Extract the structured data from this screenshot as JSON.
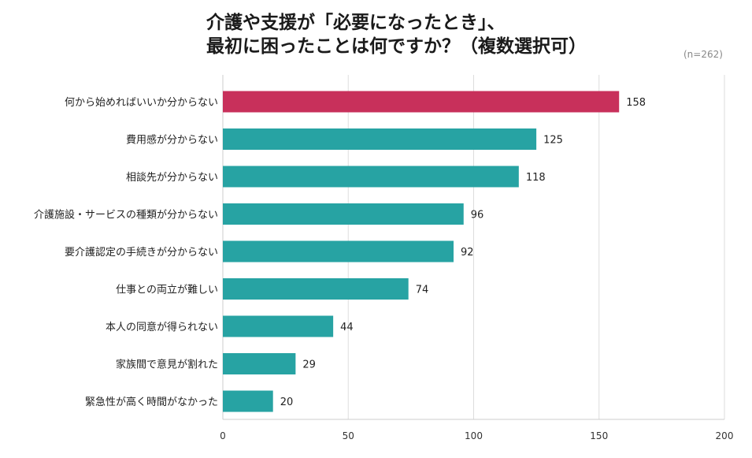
{
  "title_line1": "介護や支援が「必要になったとき」、",
  "title_line2": "最初に困ったことは何ですか？（複数選択可）",
  "note": "(n=262)",
  "colors": {
    "highlight": "#c8305b",
    "bar": "#27a3a3",
    "grid": "#dddddd"
  },
  "chart_data": {
    "type": "bar",
    "orientation": "horizontal",
    "title": "介護や支援が「必要になったとき」、最初に困ったことは何ですか？（複数選択可）",
    "categories": [
      "何から始めればいいか分からない",
      "費用感が分からない",
      "相談先が分からない",
      "介護施設・サービスの種類が分からない",
      "要介護認定の手続きが分からない",
      "仕事との両立が難しい",
      "本人の同意が得られない",
      "家族間で意見が割れた",
      "緊急性が高く時間がなかった"
    ],
    "values": [
      158,
      125,
      118,
      96,
      92,
      74,
      44,
      29,
      20
    ],
    "highlight_index": 0,
    "xlim": [
      0,
      200
    ],
    "xticks": [
      0,
      50,
      100,
      150,
      200
    ],
    "grid": true
  }
}
